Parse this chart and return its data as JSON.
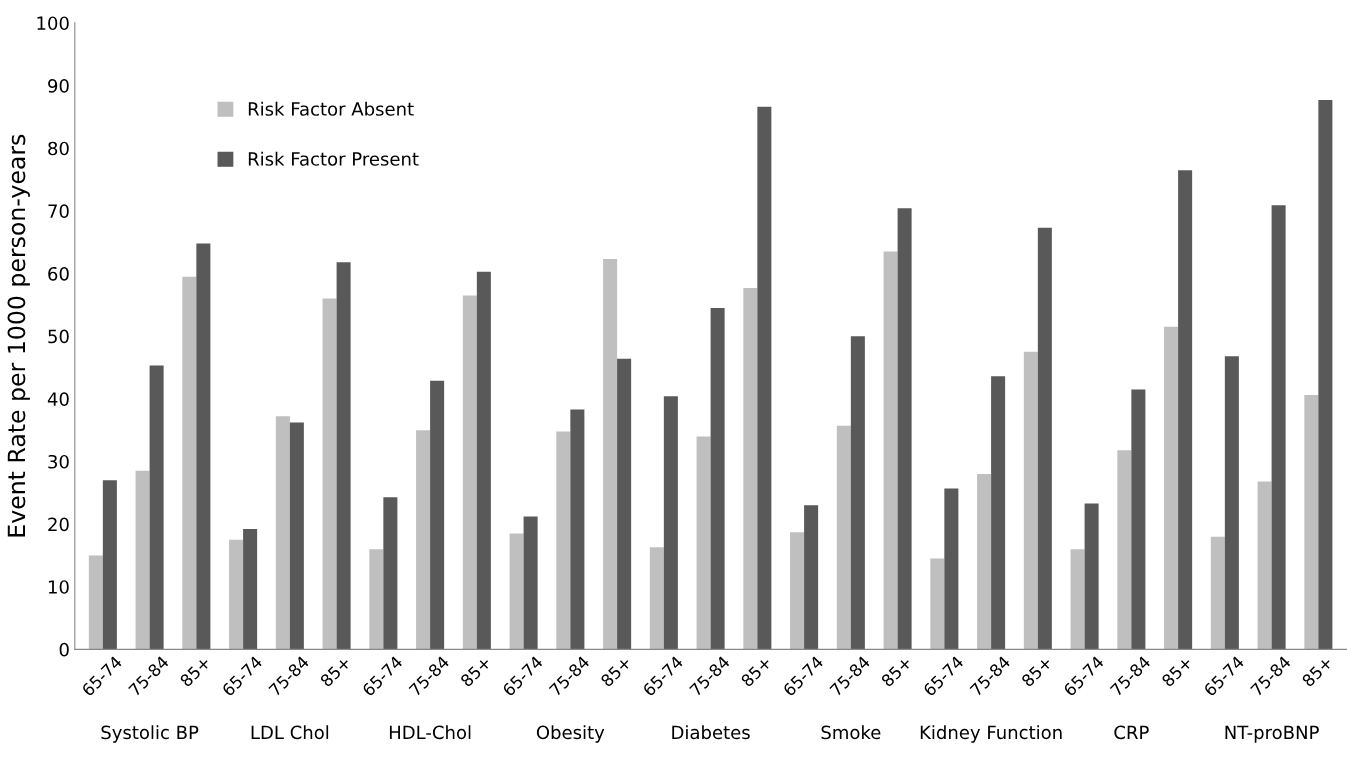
{
  "chart_data": {
    "type": "bar",
    "ylabel": "Event Rate per 1000 person-years",
    "categories": [
      "65-74",
      "75-84",
      "85+",
      "65-74",
      "75-84",
      "85+",
      "65-74",
      "75-84",
      "85+",
      "65-74",
      "75-84",
      "85+",
      "65-74",
      "75-84",
      "85+",
      "65-74",
      "75-84",
      "85+",
      "65-74",
      "75-84",
      "85+",
      "65-74",
      "75-84",
      "85+",
      "65-74",
      "75-84",
      "85+"
    ],
    "series": [
      {
        "name": "Risk Factor Absent",
        "color": "#bfbfbf",
        "values": [
          15,
          28.5,
          59.5,
          17.5,
          37.2,
          56,
          16,
          35,
          56.5,
          18.5,
          34.8,
          62.3,
          16.3,
          34,
          57.7,
          18.7,
          35.7,
          63.5,
          14.5,
          28,
          47.5,
          16,
          31.8,
          51.5,
          18,
          26.8,
          40.6
        ]
      },
      {
        "name": "Risk Factor Present",
        "color": "#595959",
        "values": [
          27,
          45.3,
          64.8,
          19.2,
          36.2,
          61.8,
          24.3,
          42.9,
          60.3,
          21.2,
          38.3,
          46.4,
          40.4,
          54.5,
          86.6,
          23,
          50,
          70.4,
          25.7,
          43.6,
          67.3,
          23.3,
          41.5,
          76.5,
          46.8,
          70.9,
          87.7
        ]
      }
    ],
    "annotations": [
      "Systolic BP",
      "LDL Chol",
      "HDL-Chol",
      "Obesity",
      "Diabetes",
      "Smoke",
      "Kidney Function",
      "CRP",
      "NT-proBNP"
    ],
    "ylim": [
      0,
      100
    ],
    "yticks": [
      0,
      10,
      20,
      30,
      40,
      50,
      60,
      70,
      80,
      90,
      100
    ],
    "grid": false,
    "legend": "top left"
  }
}
